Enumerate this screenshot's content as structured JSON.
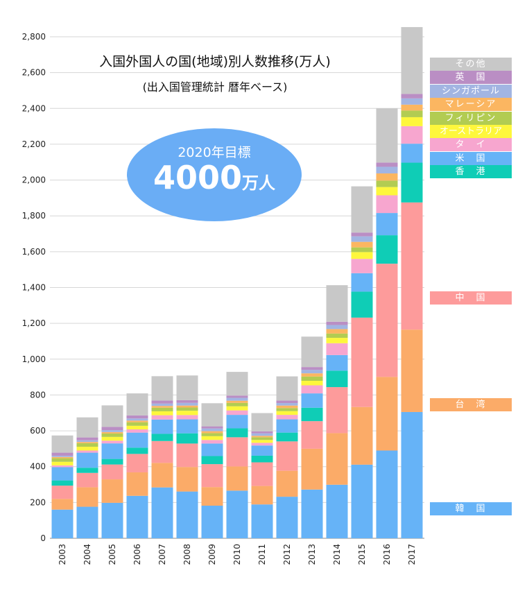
{
  "title": "入国外国人の国(地域)別人数推移(万人)",
  "subtitle": "(出入国管理統計 暦年ベース)",
  "goal": {
    "label": "2020年目標",
    "value": "4000",
    "unit": "万人"
  },
  "colors": {
    "韓国": "#66b3f7",
    "台湾": "#fbab68",
    "中国": "#fd9b9b",
    "香港": "#0fcdb6",
    "米国": "#66b3f7",
    "タイ": "#f7a6cf",
    "オーストラリア": "#fef73c",
    "フィリピン": "#b2cc52",
    "マレーシア": "#fbb661",
    "シンガポール": "#a2b5e2",
    "英国": "#ba8ec4",
    "その他": "#c8c8c8"
  },
  "legend": [
    {
      "key": "その他",
      "label": "その他"
    },
    {
      "key": "英国",
      "label": "英　国"
    },
    {
      "key": "シンガポール",
      "label": "シンガポール"
    },
    {
      "key": "マレーシア",
      "label": "マレーシア"
    },
    {
      "key": "フィリピン",
      "label": "フィリピン"
    },
    {
      "key": "オーストラリア",
      "label": "オーストラリア"
    },
    {
      "key": "タイ",
      "label": "タ　イ"
    },
    {
      "key": "米国",
      "label": "米　国"
    },
    {
      "key": "香港",
      "label": "香　港"
    },
    {
      "key": "中国",
      "label": "中　国"
    },
    {
      "key": "台湾",
      "label": "台　湾"
    },
    {
      "key": "韓国",
      "label": "韓　国"
    }
  ],
  "chart_data": {
    "type": "bar",
    "stacked": true,
    "ylim": [
      0,
      2800
    ],
    "yticks": [
      0,
      200,
      400,
      600,
      800,
      1000,
      1200,
      1400,
      1600,
      1800,
      2000,
      2200,
      2400,
      2600,
      2800
    ],
    "ytick_labels": [
      "0",
      "200",
      "400",
      "600",
      "800",
      "1,000",
      "1,200",
      "1,400",
      "1,600",
      "1,800",
      "2,000",
      "2,200",
      "2,400",
      "2,600",
      "2,800"
    ],
    "grid": true,
    "categories": [
      "2003",
      "2004",
      "2005",
      "2006",
      "2007",
      "2008",
      "2009",
      "2010",
      "2011",
      "2012",
      "2013",
      "2014",
      "2015",
      "2016",
      "2017"
    ],
    "series": [
      {
        "name": "韓国",
        "values": [
          160,
          176,
          198,
          237,
          284,
          261,
          182,
          266,
          189,
          232,
          272,
          299,
          411,
          490,
          705
        ]
      },
      {
        "name": "台湾",
        "values": [
          60,
          109,
          131,
          131,
          137,
          137,
          104,
          135,
          103,
          145,
          228,
          288,
          322,
          411,
          460
        ]
      },
      {
        "name": "中国",
        "values": [
          74,
          80,
          83,
          103,
          122,
          131,
          128,
          163,
          132,
          164,
          154,
          257,
          499,
          632,
          710
        ]
      },
      {
        "name": "香港",
        "values": [
          29,
          29,
          31,
          35,
          40,
          57,
          45,
          50,
          37,
          49,
          75,
          92,
          145,
          159,
          222
        ]
      },
      {
        "name": "米国",
        "values": [
          74,
          84,
          87,
          84,
          80,
          78,
          70,
          75,
          57,
          74,
          80,
          87,
          103,
          124,
          106
        ]
      },
      {
        "name": "タイ",
        "values": [
          10,
          12,
          15,
          18,
          24,
          24,
          20,
          25,
          15,
          25,
          45,
          66,
          80,
          99,
          98
        ]
      },
      {
        "name": "オーストラリア",
        "values": [
          20,
          21,
          21,
          20,
          22,
          24,
          21,
          23,
          16,
          21,
          25,
          30,
          38,
          46,
          50
        ]
      },
      {
        "name": "フィリピン",
        "values": [
          20,
          20,
          19,
          20,
          20,
          18,
          17,
          19,
          15,
          17,
          24,
          24,
          26,
          36,
          37
        ]
      },
      {
        "name": "マレーシア",
        "values": [
          7,
          7,
          8,
          9,
          10,
          11,
          11,
          12,
          8,
          14,
          18,
          25,
          31,
          40,
          33
        ]
      },
      {
        "name": "シンガポール",
        "values": [
          7,
          9,
          11,
          12,
          13,
          15,
          15,
          16,
          14,
          14,
          19,
          23,
          31,
          37,
          35
        ]
      },
      {
        "name": "英国",
        "values": [
          17,
          16,
          18,
          17,
          17,
          15,
          12,
          13,
          11,
          14,
          16,
          18,
          21,
          24,
          25
        ]
      },
      {
        "name": "その他",
        "values": [
          96,
          112,
          120,
          123,
          136,
          138,
          129,
          132,
          102,
          135,
          170,
          204,
          258,
          302,
          373
        ]
      }
    ]
  }
}
